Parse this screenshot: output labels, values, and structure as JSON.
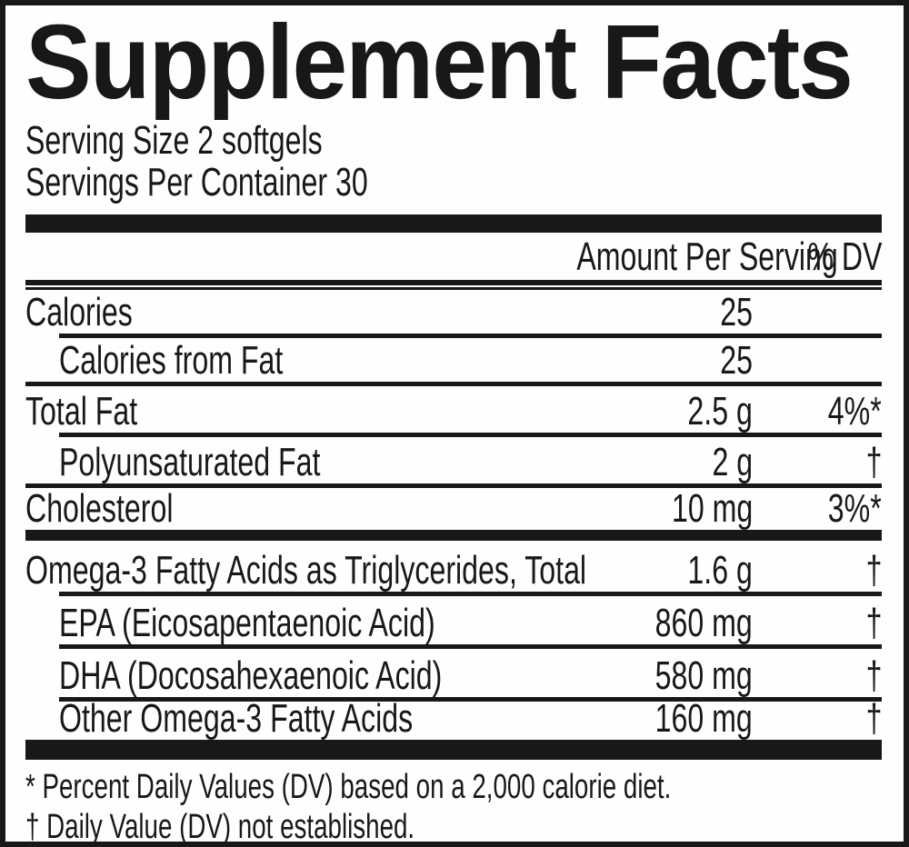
{
  "supplement_facts": {
    "title": "Supplement Facts",
    "serving_size": "Serving Size 2 softgels",
    "servings_per_container": "Servings Per Container 30",
    "columns": {
      "amount_header": "Amount Per Serving",
      "dv_header": "% DV"
    },
    "rows": [
      {
        "name": "Calories",
        "amount": "25",
        "dv": "",
        "indent": false
      },
      {
        "name": "Calories from Fat",
        "amount": "25",
        "dv": "",
        "indent": true
      },
      {
        "name": "Total Fat",
        "amount": "2.5 g",
        "dv": "4%*",
        "indent": false
      },
      {
        "name": "Polyunsaturated Fat",
        "amount": "2 g",
        "dv": "†",
        "indent": true
      },
      {
        "name": "Cholesterol",
        "amount": "10 mg",
        "dv": "3%*",
        "indent": false
      },
      {
        "name": "Omega-3 Fatty Acids as Triglycerides, Total",
        "amount": "1.6 g",
        "dv": "†",
        "indent": false
      },
      {
        "name": "EPA (Eicosapentaenoic Acid)",
        "amount": "860 mg",
        "dv": "†",
        "indent": true
      },
      {
        "name": "DHA (Docosahexaenoic Acid)",
        "amount": "580 mg",
        "dv": "†",
        "indent": true
      },
      {
        "name": "Other Omega-3 Fatty Acids",
        "amount": "160 mg",
        "dv": "†",
        "indent": true
      }
    ],
    "footnotes": [
      "* Percent Daily Values (DV) based on a 2,000 calorie diet.",
      "† Daily Value (DV) not established."
    ],
    "colors": {
      "ink": "#1a171b",
      "background": "#ffffff"
    }
  }
}
